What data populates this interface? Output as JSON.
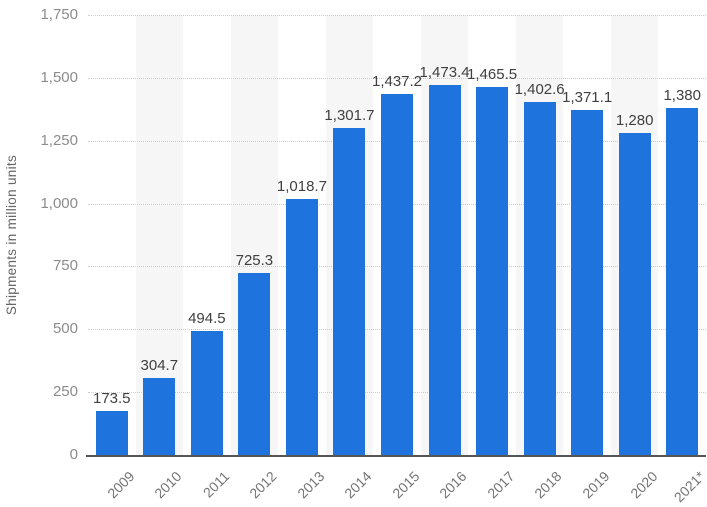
{
  "chart_data": {
    "type": "bar",
    "title": "",
    "xlabel": "",
    "ylabel": "Shipments in million units",
    "categories": [
      "2009",
      "2010",
      "2011",
      "2012",
      "2013",
      "2014",
      "2015",
      "2016",
      "2017",
      "2018",
      "2019",
      "2020",
      "2021*"
    ],
    "values": [
      173.5,
      304.7,
      494.5,
      725.3,
      1018.7,
      1301.7,
      1437.2,
      1473.4,
      1465.5,
      1402.6,
      1371.1,
      1280,
      1380
    ],
    "value_labels": [
      "173.5",
      "304.7",
      "494.5",
      "725.3",
      "1,018.7",
      "1,301.7",
      "1,437.2",
      "1,473.4",
      "1,465.5",
      "1,402.6",
      "1,371.1",
      "1,280",
      "1,380"
    ],
    "ylim": [
      0,
      1750
    ],
    "yticks": [
      0,
      250,
      500,
      750,
      1000,
      1250,
      1500,
      1750
    ],
    "ytick_labels": [
      "0",
      "250",
      "500",
      "750",
      "1,000",
      "1,250",
      "1,500",
      "1,750"
    ],
    "grid": "horizontal-dotted",
    "legend": null,
    "background_stripes": "alternating vertical bands behind every second year column starting at 2010"
  },
  "colors": {
    "bar": "#1e74dc",
    "stripe": "#f6f6f6",
    "gridline": "#cccccc",
    "axis_line": "#565656",
    "ytick_text": "#8c8c8c",
    "xtick_text": "#757575",
    "value_text": "#404040",
    "ytitle_text": "#666666",
    "background": "#ffffff"
  }
}
